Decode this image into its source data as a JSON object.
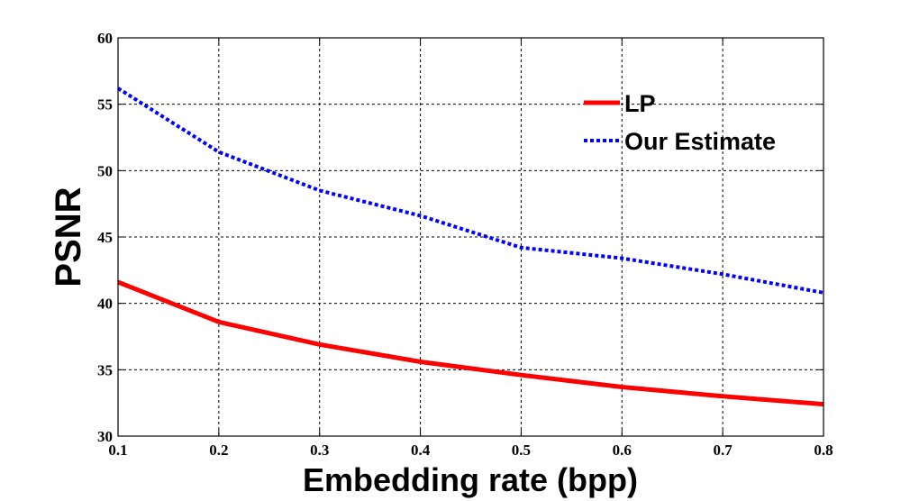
{
  "chart_data": {
    "type": "line",
    "xlabel": "Embedding rate (bpp)",
    "ylabel": "PSNR",
    "xlim": [
      0.1,
      0.8
    ],
    "ylim": [
      30,
      60
    ],
    "x_ticks": [
      0.1,
      0.2,
      0.3,
      0.4,
      0.5,
      0.6,
      0.7,
      0.8
    ],
    "x_tick_labels": [
      "0.1",
      "0.2",
      "0.3",
      "0.4",
      "0.5",
      "0.6",
      "0.7",
      "0.8"
    ],
    "y_ticks": [
      30,
      35,
      40,
      45,
      50,
      55,
      60
    ],
    "y_tick_labels": [
      "30",
      "35",
      "40",
      "45",
      "50",
      "55",
      "60"
    ],
    "grid": true,
    "legend_position": "top-right",
    "x": [
      0.1,
      0.2,
      0.3,
      0.4,
      0.5,
      0.6,
      0.7,
      0.8
    ],
    "series": [
      {
        "name": "LP",
        "color": "#ff0000",
        "style": "solid",
        "values": [
          41.6,
          38.6,
          36.9,
          35.6,
          34.6,
          33.7,
          33.0,
          32.4
        ]
      },
      {
        "name": "Our Estimate",
        "color": "#0000ff",
        "style": "dotted",
        "values": [
          56.2,
          51.4,
          48.5,
          46.6,
          44.2,
          43.4,
          42.2,
          40.8
        ]
      }
    ]
  }
}
